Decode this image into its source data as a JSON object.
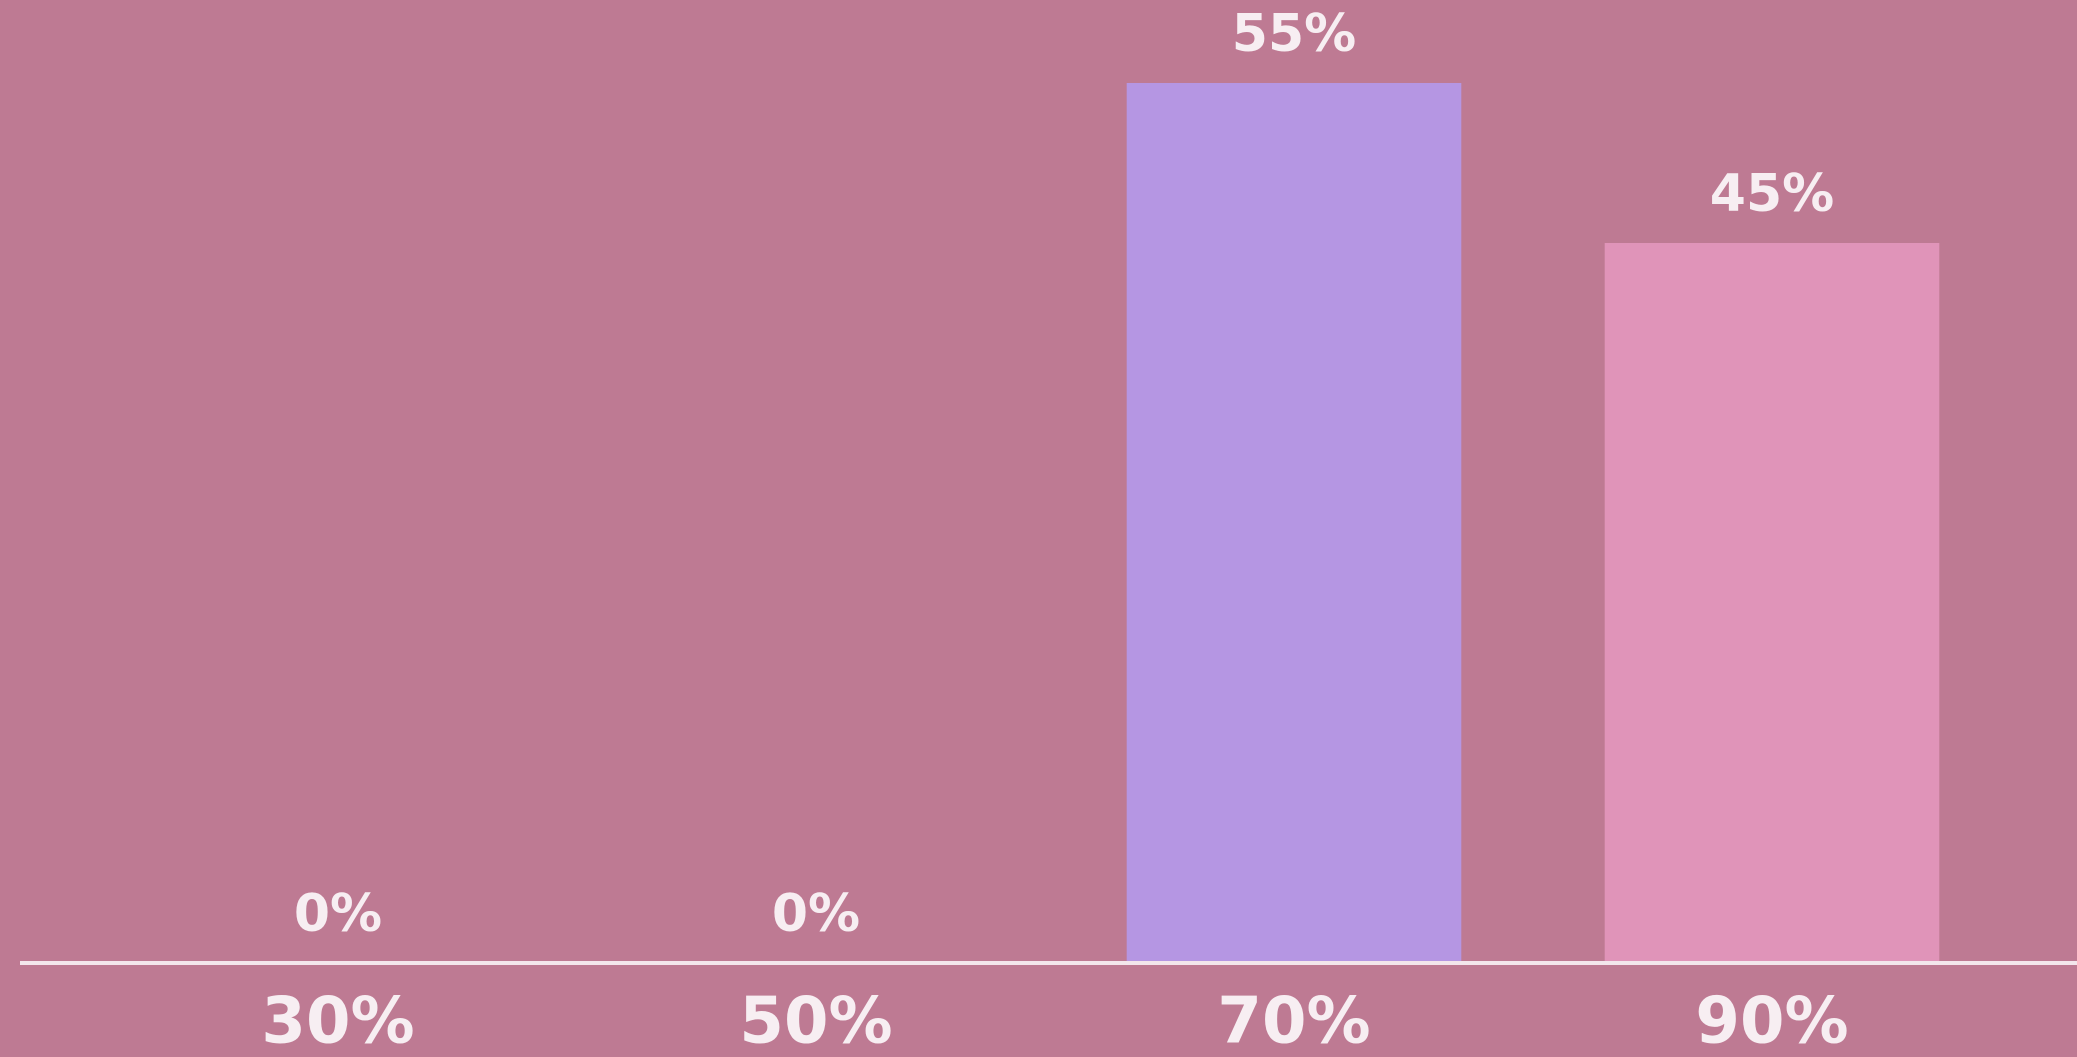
{
  "chart_data": {
    "type": "bar",
    "categories": [
      "30%",
      "50%",
      "70%",
      "90%"
    ],
    "values": [
      0,
      0,
      55,
      45
    ],
    "value_labels": [
      "0%",
      "0%",
      "55%",
      "45%"
    ],
    "colors": [
      "#b596e3",
      "#b596e3",
      "#b596e3",
      "#e094b9"
    ]
  }
}
